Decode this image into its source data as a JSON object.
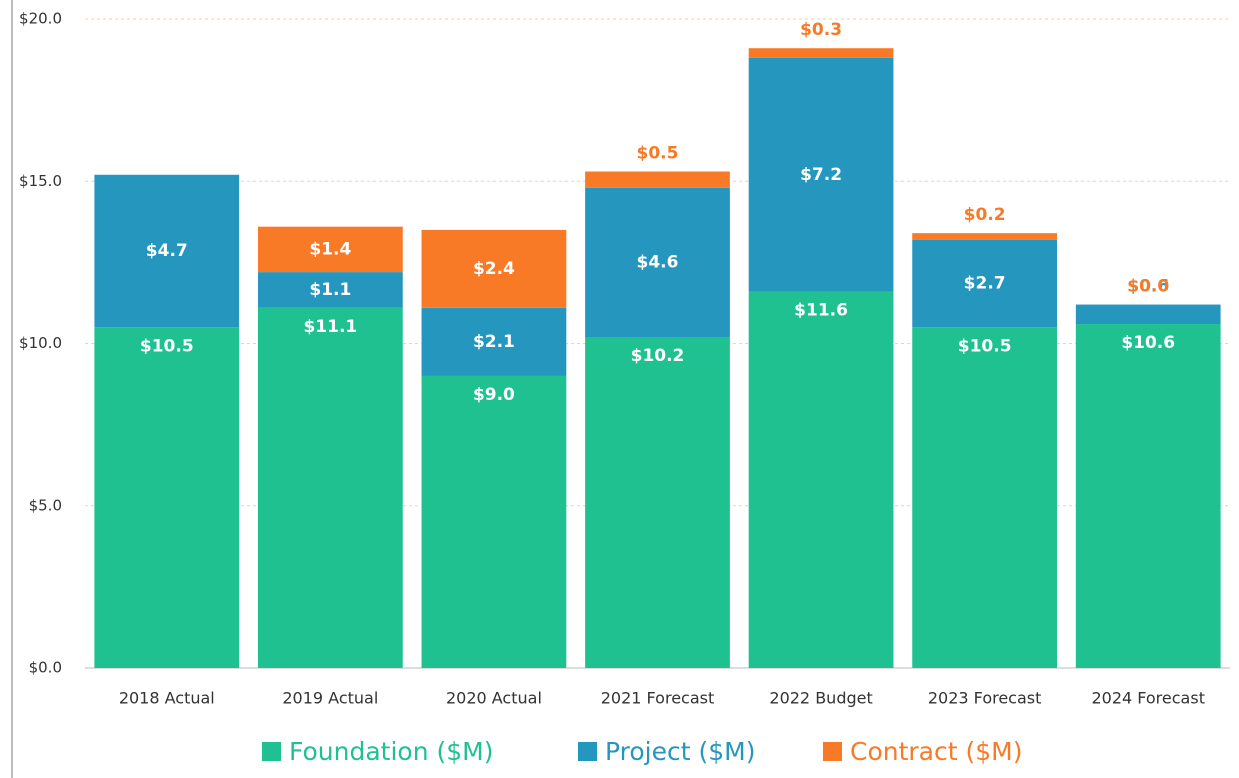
{
  "chart_data": {
    "type": "stacked_bar",
    "categories": [
      "2018 Actual",
      "2019 Actual",
      "2020 Actual",
      "2021 Forecast",
      "2022 Budget",
      "2023 Forecast",
      "2024 Forecast"
    ],
    "series": [
      {
        "name": "Foundation ($M)",
        "color": "#20c191",
        "values": [
          10.5,
          11.1,
          9.0,
          10.2,
          11.6,
          10.5,
          10.6
        ],
        "value_labels": [
          "$10.5",
          "$11.1",
          "$9.0",
          "$10.2",
          "$11.6",
          "$10.5",
          "$10.6"
        ]
      },
      {
        "name": "Project ($M)",
        "color": "#2596be",
        "values": [
          4.7,
          1.1,
          2.1,
          4.6,
          7.2,
          2.7,
          0.6
        ],
        "value_labels": [
          "$4.7",
          "$1.1",
          "$2.1",
          "$4.6",
          "$7.2",
          "$2.7",
          "$0.6"
        ]
      },
      {
        "name": "Contract ($M)",
        "color": "#f97a26",
        "values": [
          null,
          1.4,
          2.4,
          0.5,
          0.3,
          0.2,
          0.0
        ],
        "value_labels": [
          null,
          "$1.4",
          "$2.4",
          "$0.5",
          "$0.3",
          "$0.2",
          "$0.0"
        ]
      }
    ],
    "ylim": [
      0,
      20
    ],
    "yticks": [
      {
        "value": 0,
        "label": "$0.0"
      },
      {
        "value": 5,
        "label": "$5.0"
      },
      {
        "value": 10,
        "label": "$10.0"
      },
      {
        "value": 15,
        "label": "$15.0"
      },
      {
        "value": 20,
        "label": "$20.0"
      }
    ],
    "grid": true,
    "legend": "bottom"
  }
}
